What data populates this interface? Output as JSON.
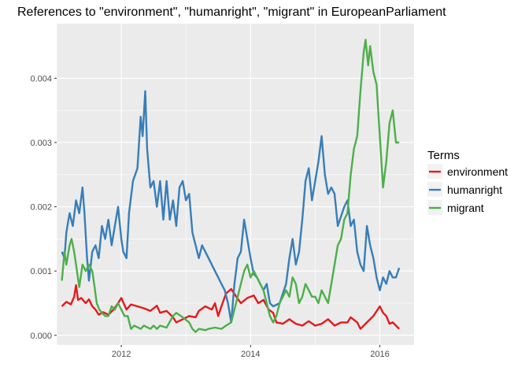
{
  "chart_data": {
    "type": "line",
    "title": "References to \"environment\", \"humanright\", \"migrant\" in EuropeanParliament",
    "xlabel": "",
    "ylabel": "",
    "xlim": [
      2011.0,
      2016.53
    ],
    "ylim": [
      -0.00015,
      0.00485
    ],
    "x_ticks": [
      2012,
      2014,
      2016
    ],
    "x_tick_labels": [
      "2012",
      "2014",
      "2016"
    ],
    "y_ticks": [
      0.0,
      0.001,
      0.002,
      0.003,
      0.004
    ],
    "y_tick_labels": [
      "0.000",
      "0.001",
      "0.002",
      "0.003",
      "0.004"
    ],
    "grid": true,
    "background": "#ebebeb",
    "legend": {
      "title": "Terms",
      "position": "right"
    },
    "series": [
      {
        "name": "environment",
        "color": "#e41a1c",
        "points": [
          [
            2011.08,
            0.00045
          ],
          [
            2011.15,
            0.00052
          ],
          [
            2011.22,
            0.00048
          ],
          [
            2011.27,
            0.0006
          ],
          [
            2011.3,
            0.00078
          ],
          [
            2011.33,
            0.00055
          ],
          [
            2011.38,
            0.00058
          ],
          [
            2011.45,
            0.0005
          ],
          [
            2011.5,
            0.00056
          ],
          [
            2011.55,
            0.00045
          ],
          [
            2011.6,
            0.0004
          ],
          [
            2011.65,
            0.00032
          ],
          [
            2011.72,
            0.00036
          ],
          [
            2011.8,
            0.00032
          ],
          [
            2011.88,
            0.0004
          ],
          [
            2011.95,
            0.0005
          ],
          [
            2012.0,
            0.00058
          ],
          [
            2012.08,
            0.0004
          ],
          [
            2012.15,
            0.00048
          ],
          [
            2012.25,
            0.00045
          ],
          [
            2012.35,
            0.00042
          ],
          [
            2012.45,
            0.00038
          ],
          [
            2012.55,
            0.00046
          ],
          [
            2012.6,
            0.00035
          ],
          [
            2012.7,
            0.00038
          ],
          [
            2012.8,
            0.00028
          ],
          [
            2012.85,
            0.0002
          ],
          [
            2012.95,
            0.00025
          ],
          [
            2013.05,
            0.0003
          ],
          [
            2013.15,
            0.00028
          ],
          [
            2013.2,
            0.00038
          ],
          [
            2013.3,
            0.00045
          ],
          [
            2013.4,
            0.0004
          ],
          [
            2013.45,
            0.0005
          ],
          [
            2013.5,
            0.0003
          ],
          [
            2013.55,
            0.00045
          ],
          [
            2013.62,
            0.00065
          ],
          [
            2013.7,
            0.00072
          ],
          [
            2013.78,
            0.0006
          ],
          [
            2013.85,
            0.0005
          ],
          [
            2013.95,
            0.00058
          ],
          [
            2014.05,
            0.00062
          ],
          [
            2014.12,
            0.0005
          ],
          [
            2014.2,
            0.00055
          ],
          [
            2014.28,
            0.0004
          ],
          [
            2014.35,
            0.00035
          ],
          [
            2014.4,
            0.0002
          ],
          [
            2014.5,
            0.00018
          ],
          [
            2014.6,
            0.00025
          ],
          [
            2014.7,
            0.00018
          ],
          [
            2014.8,
            0.00015
          ],
          [
            2014.9,
            0.00022
          ],
          [
            2015.0,
            0.00015
          ],
          [
            2015.1,
            0.00018
          ],
          [
            2015.2,
            0.00025
          ],
          [
            2015.3,
            0.00015
          ],
          [
            2015.4,
            0.0002
          ],
          [
            2015.5,
            0.0002
          ],
          [
            2015.55,
            0.00028
          ],
          [
            2015.65,
            0.0002
          ],
          [
            2015.7,
            0.0001
          ],
          [
            2015.75,
            0.00015
          ],
          [
            2015.8,
            0.0002
          ],
          [
            2015.9,
            0.0003
          ],
          [
            2016.0,
            0.00045
          ],
          [
            2016.05,
            0.00035
          ],
          [
            2016.1,
            0.0003
          ],
          [
            2016.15,
            0.00018
          ],
          [
            2016.2,
            0.0002
          ],
          [
            2016.25,
            0.00015
          ],
          [
            2016.3,
            0.0001
          ]
        ]
      },
      {
        "name": "humanright",
        "color": "#377eb8",
        "points": [
          [
            2011.08,
            0.0013
          ],
          [
            2011.12,
            0.0012
          ],
          [
            2011.15,
            0.0016
          ],
          [
            2011.2,
            0.0019
          ],
          [
            2011.25,
            0.0017
          ],
          [
            2011.3,
            0.0021
          ],
          [
            2011.35,
            0.0019
          ],
          [
            2011.4,
            0.0023
          ],
          [
            2011.43,
            0.0019
          ],
          [
            2011.47,
            0.0012
          ],
          [
            2011.5,
            0.00085
          ],
          [
            2011.55,
            0.0013
          ],
          [
            2011.6,
            0.0014
          ],
          [
            2011.65,
            0.0012
          ],
          [
            2011.7,
            0.0017
          ],
          [
            2011.75,
            0.0015
          ],
          [
            2011.8,
            0.0018
          ],
          [
            2011.85,
            0.0014
          ],
          [
            2011.9,
            0.0017
          ],
          [
            2011.95,
            0.002
          ],
          [
            2012.0,
            0.0015
          ],
          [
            2012.03,
            0.0013
          ],
          [
            2012.08,
            0.0012
          ],
          [
            2012.12,
            0.0019
          ],
          [
            2012.18,
            0.0024
          ],
          [
            2012.25,
            0.0026
          ],
          [
            2012.3,
            0.0034
          ],
          [
            2012.33,
            0.0031
          ],
          [
            2012.37,
            0.0038
          ],
          [
            2012.4,
            0.0029
          ],
          [
            2012.45,
            0.0023
          ],
          [
            2012.5,
            0.0024
          ],
          [
            2012.55,
            0.002
          ],
          [
            2012.6,
            0.0024
          ],
          [
            2012.65,
            0.0018
          ],
          [
            2012.7,
            0.0024
          ],
          [
            2012.75,
            0.0018
          ],
          [
            2012.8,
            0.0021
          ],
          [
            2012.85,
            0.0017
          ],
          [
            2012.9,
            0.0023
          ],
          [
            2012.95,
            0.0024
          ],
          [
            2013.0,
            0.0021
          ],
          [
            2013.05,
            0.0022
          ],
          [
            2013.1,
            0.0016
          ],
          [
            2013.15,
            0.0014
          ],
          [
            2013.2,
            0.0012
          ],
          [
            2013.25,
            0.0014
          ],
          [
            2013.35,
            0.0012
          ],
          [
            2013.45,
            0.001
          ],
          [
            2013.55,
            0.0008
          ],
          [
            2013.6,
            0.0007
          ],
          [
            2013.65,
            0.0005
          ],
          [
            2013.7,
            0.0002
          ],
          [
            2013.75,
            0.0008
          ],
          [
            2013.8,
            0.0012
          ],
          [
            2013.85,
            0.0013
          ],
          [
            2013.9,
            0.0018
          ],
          [
            2013.95,
            0.0015
          ],
          [
            2014.0,
            0.0012
          ],
          [
            2014.05,
            0.00095
          ],
          [
            2014.1,
            0.0009
          ],
          [
            2014.15,
            0.0008
          ],
          [
            2014.2,
            0.0007
          ],
          [
            2014.25,
            0.0008
          ],
          [
            2014.3,
            0.0005
          ],
          [
            2014.35,
            0.00045
          ],
          [
            2014.45,
            0.0005
          ],
          [
            2014.55,
            0.0008
          ],
          [
            2014.6,
            0.0012
          ],
          [
            2014.65,
            0.0015
          ],
          [
            2014.7,
            0.0011
          ],
          [
            2014.75,
            0.0013
          ],
          [
            2014.8,
            0.0018
          ],
          [
            2014.85,
            0.0024
          ],
          [
            2014.9,
            0.0026
          ],
          [
            2014.95,
            0.0021
          ],
          [
            2015.0,
            0.0024
          ],
          [
            2015.05,
            0.0027
          ],
          [
            2015.1,
            0.0031
          ],
          [
            2015.15,
            0.0025
          ],
          [
            2015.2,
            0.0022
          ],
          [
            2015.25,
            0.0023
          ],
          [
            2015.3,
            0.0022
          ],
          [
            2015.35,
            0.0017
          ],
          [
            2015.45,
            0.002
          ],
          [
            2015.5,
            0.0021
          ],
          [
            2015.55,
            0.0017
          ],
          [
            2015.6,
            0.0018
          ],
          [
            2015.65,
            0.0013
          ],
          [
            2015.7,
            0.0011
          ],
          [
            2015.75,
            0.001
          ],
          [
            2015.8,
            0.0017
          ],
          [
            2015.85,
            0.0014
          ],
          [
            2015.9,
            0.0012
          ],
          [
            2015.95,
            0.0009
          ],
          [
            2016.0,
            0.0007
          ],
          [
            2016.05,
            0.0009
          ],
          [
            2016.1,
            0.0008
          ],
          [
            2016.15,
            0.001
          ],
          [
            2016.2,
            0.0009
          ],
          [
            2016.25,
            0.0009
          ],
          [
            2016.3,
            0.00105
          ]
        ]
      },
      {
        "name": "migrant",
        "color": "#4daf4a",
        "points": [
          [
            2011.08,
            0.00085
          ],
          [
            2011.12,
            0.0013
          ],
          [
            2011.15,
            0.0011
          ],
          [
            2011.2,
            0.0014
          ],
          [
            2011.23,
            0.0015
          ],
          [
            2011.27,
            0.0013
          ],
          [
            2011.3,
            0.0011
          ],
          [
            2011.35,
            0.00075
          ],
          [
            2011.4,
            0.0011
          ],
          [
            2011.45,
            0.001
          ],
          [
            2011.5,
            0.0011
          ],
          [
            2011.55,
            0.001
          ],
          [
            2011.58,
            0.0008
          ],
          [
            2011.62,
            0.0005
          ],
          [
            2011.66,
            0.0004
          ],
          [
            2011.7,
            0.00035
          ],
          [
            2011.75,
            0.0003
          ],
          [
            2011.8,
            0.0003
          ],
          [
            2011.85,
            0.00045
          ],
          [
            2011.9,
            0.0004
          ],
          [
            2011.95,
            0.0005
          ],
          [
            2012.0,
            0.0004
          ],
          [
            2012.05,
            0.0003
          ],
          [
            2012.1,
            0.0003
          ],
          [
            2012.15,
            0.0001
          ],
          [
            2012.2,
            0.00015
          ],
          [
            2012.3,
            0.0001
          ],
          [
            2012.35,
            0.00015
          ],
          [
            2012.45,
            0.0001
          ],
          [
            2012.5,
            0.00015
          ],
          [
            2012.55,
            0.0001
          ],
          [
            2012.6,
            0.00015
          ],
          [
            2012.7,
            0.00012
          ],
          [
            2012.8,
            0.0003
          ],
          [
            2012.85,
            0.00035
          ],
          [
            2012.95,
            0.00028
          ],
          [
            2013.05,
            0.0002
          ],
          [
            2013.1,
            0.0001
          ],
          [
            2013.15,
            5e-05
          ],
          [
            2013.2,
            0.0001
          ],
          [
            2013.3,
            8e-05
          ],
          [
            2013.35,
            0.0001
          ],
          [
            2013.45,
            0.00012
          ],
          [
            2013.55,
            0.0001
          ],
          [
            2013.62,
            0.00015
          ],
          [
            2013.7,
            0.0002
          ],
          [
            2013.75,
            0.0004
          ],
          [
            2013.8,
            0.0006
          ],
          [
            2013.85,
            0.0008
          ],
          [
            2013.9,
            0.001
          ],
          [
            2013.95,
            0.0011
          ],
          [
            2014.0,
            0.0009
          ],
          [
            2014.05,
            0.001
          ],
          [
            2014.1,
            0.0009
          ],
          [
            2014.15,
            0.0008
          ],
          [
            2014.2,
            0.0007
          ],
          [
            2014.25,
            0.0005
          ],
          [
            2014.3,
            0.0003
          ],
          [
            2014.35,
            0.0002
          ],
          [
            2014.4,
            0.0003
          ],
          [
            2014.45,
            0.0005
          ],
          [
            2014.5,
            0.0006
          ],
          [
            2014.55,
            0.0007
          ],
          [
            2014.6,
            0.0006
          ],
          [
            2014.65,
            0.0009
          ],
          [
            2014.7,
            0.0008
          ],
          [
            2014.75,
            0.0005
          ],
          [
            2014.8,
            0.0006
          ],
          [
            2014.85,
            0.0008
          ],
          [
            2014.9,
            0.0007
          ],
          [
            2014.95,
            0.0006
          ],
          [
            2015.0,
            0.0006
          ],
          [
            2015.05,
            0.0005
          ],
          [
            2015.1,
            0.0007
          ],
          [
            2015.15,
            0.0006
          ],
          [
            2015.2,
            0.0005
          ],
          [
            2015.25,
            0.0008
          ],
          [
            2015.3,
            0.0011
          ],
          [
            2015.35,
            0.0014
          ],
          [
            2015.4,
            0.0015
          ],
          [
            2015.45,
            0.0018
          ],
          [
            2015.5,
            0.0019
          ],
          [
            2015.55,
            0.0025
          ],
          [
            2015.6,
            0.0029
          ],
          [
            2015.65,
            0.0031
          ],
          [
            2015.7,
            0.0038
          ],
          [
            2015.75,
            0.0044
          ],
          [
            2015.78,
            0.0046
          ],
          [
            2015.82,
            0.0042
          ],
          [
            2015.85,
            0.0045
          ],
          [
            2015.9,
            0.0041
          ],
          [
            2015.95,
            0.0039
          ],
          [
            2016.0,
            0.0031
          ],
          [
            2016.05,
            0.0023
          ],
          [
            2016.1,
            0.0027
          ],
          [
            2016.15,
            0.0033
          ],
          [
            2016.2,
            0.0035
          ],
          [
            2016.25,
            0.003
          ],
          [
            2016.3,
            0.003
          ]
        ]
      }
    ]
  }
}
